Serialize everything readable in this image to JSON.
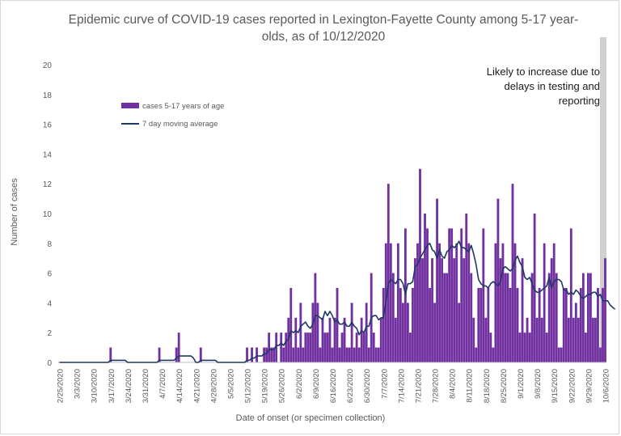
{
  "chart_data": {
    "type": "bar",
    "title_line1": "Epidemic curve of COVID-19 cases reported in Lexington-Fayette County among 5-17 year-",
    "title_line2": "olds, as of 10/12/2020",
    "xlabel": "Date of onset (or specimen collection)",
    "ylabel": "Number of cases",
    "ylim": [
      0,
      20
    ],
    "y_ticks": [
      "0",
      "2",
      "4",
      "6",
      "8",
      "10",
      "12",
      "14",
      "16",
      "18",
      "20"
    ],
    "x_tick_labels": [
      "2/25/2020",
      "3/3/2020",
      "3/10/2020",
      "3/17/2020",
      "3/24/2020",
      "3/31/2020",
      "4/7/2020",
      "4/14/2020",
      "4/21/2020",
      "4/28/2020",
      "5/5/2020",
      "5/12/2020",
      "5/19/2020",
      "5/26/2020",
      "6/2/2020",
      "6/9/2020",
      "6/16/2020",
      "6/23/2020",
      "6/30/2020",
      "7/7/2020",
      "7/14/2020",
      "7/21/2020",
      "7/28/2020",
      "8/4/2020",
      "8/11/2020",
      "8/18/2020",
      "8/25/2020",
      "9/1/2020",
      "9/8/2020",
      "9/15/2020",
      "9/22/2020",
      "9/29/2020",
      "10/6/2020"
    ],
    "start_date": "2/25/2020",
    "series": [
      {
        "name": "cases 5-17 years of age",
        "color": "#7030a0",
        "values": [
          0,
          0,
          0,
          0,
          0,
          0,
          0,
          0,
          0,
          0,
          0,
          0,
          0,
          0,
          0,
          0,
          0,
          0,
          0,
          0,
          0,
          1,
          0,
          0,
          0,
          0,
          0,
          0,
          0,
          0,
          0,
          0,
          0,
          0,
          0,
          0,
          0,
          0,
          0,
          0,
          0,
          1,
          0,
          0,
          0,
          0,
          0,
          0,
          1,
          2,
          0,
          0,
          0,
          0,
          0,
          0,
          0,
          0,
          1,
          0,
          0,
          0,
          0,
          0,
          0,
          0,
          0,
          0,
          0,
          0,
          0,
          0,
          0,
          0,
          0,
          0,
          0,
          1,
          0,
          1,
          0,
          1,
          0,
          0,
          1,
          1,
          2,
          1,
          1,
          2,
          0,
          2,
          1,
          2,
          3,
          5,
          1,
          3,
          1,
          4,
          1,
          2,
          2,
          2,
          4,
          6,
          4,
          1,
          3,
          2,
          2,
          3,
          1,
          3,
          5,
          1,
          2,
          3,
          1,
          1,
          4,
          1,
          2,
          1,
          3,
          2,
          4,
          1,
          6,
          2,
          1,
          1,
          3,
          5,
          8,
          12,
          8,
          6,
          3,
          8,
          5,
          4,
          9,
          4,
          2,
          5,
          7,
          8,
          13,
          7,
          10,
          9,
          5,
          7,
          4,
          11,
          8,
          7,
          6,
          6,
          9,
          9,
          7,
          8,
          4,
          9,
          7,
          10,
          8,
          6,
          3,
          1,
          5,
          5,
          9,
          3,
          5,
          2,
          1,
          8,
          11,
          7,
          8,
          6,
          6,
          5,
          12,
          8,
          5,
          2,
          7,
          2,
          3,
          2,
          6,
          10,
          3,
          5,
          3,
          8,
          2,
          6,
          7,
          8,
          6,
          1,
          1,
          5,
          5,
          3,
          9,
          3,
          4,
          3,
          5,
          6,
          2,
          6,
          6,
          3,
          3,
          5,
          1,
          5,
          7
        ],
        "values_note_skip": null
      },
      {
        "name": "7 day moving average",
        "color": "#1f3864",
        "values": [
          0,
          0,
          0,
          0,
          0,
          0,
          0,
          0,
          0,
          0,
          0,
          0,
          0,
          0,
          0,
          0,
          0,
          0,
          0,
          0,
          0,
          0.14,
          0.14,
          0.14,
          0.14,
          0.14,
          0.14,
          0.14,
          0,
          0,
          0,
          0,
          0,
          0,
          0,
          0,
          0,
          0,
          0,
          0,
          0,
          0.14,
          0.14,
          0.14,
          0.14,
          0.14,
          0.14,
          0.14,
          0.29,
          0.43,
          0.43,
          0.43,
          0.43,
          0.43,
          0.43,
          0.29,
          0,
          0,
          0.14,
          0.14,
          0.14,
          0.14,
          0.14,
          0.14,
          0.14,
          0,
          0,
          0,
          0,
          0,
          0,
          0,
          0,
          0,
          0,
          0,
          0,
          0.14,
          0.14,
          0.29,
          0.29,
          0.43,
          0.43,
          0.43,
          0.57,
          0.57,
          0.86,
          0.86,
          0.86,
          1.14,
          1.14,
          1.29,
          1.14,
          1.43,
          1.57,
          2.14,
          2,
          2.14,
          2,
          2.43,
          2.57,
          2.71,
          2.43,
          2.29,
          2.57,
          3.14,
          3.14,
          3,
          2.86,
          3.43,
          3.14,
          3.43,
          3.14,
          2.71,
          2.86,
          2.57,
          2.57,
          2.71,
          2.43,
          2.43,
          2.71,
          2.43,
          2.29,
          1.86,
          2.14,
          2,
          2.43,
          2.43,
          3,
          3.14,
          3.14,
          2.86,
          3,
          3,
          4,
          5.29,
          5.57,
          5.43,
          5.29,
          5.57,
          5.57,
          5.29,
          4.57,
          5.29,
          5.29,
          5.43,
          6.43,
          6.57,
          7,
          7.29,
          7.57,
          7.86,
          8,
          7.57,
          7.43,
          7,
          7.57,
          7.14,
          7,
          7.43,
          7.57,
          7.86,
          7.71,
          7.86,
          8.14,
          7.71,
          7.71,
          7.57,
          7.43,
          7.86,
          7.29,
          6.57,
          5.57,
          5.29,
          5.14,
          5.14,
          5,
          5.29,
          5.43,
          5.29,
          5.14,
          5.43,
          6.29,
          6.43,
          6.29,
          6.14,
          6.29,
          6.86,
          7.14,
          6.71,
          6.43,
          5.71,
          5.57,
          5.71,
          5.29,
          4.86,
          4.71,
          4.71,
          4.86,
          5,
          5.14,
          5.71,
          5,
          5.43,
          5.57,
          5.57,
          5.43,
          4.86,
          4.86,
          4.57,
          4.71,
          4.57,
          4.86,
          4.71,
          4.43,
          4.29,
          4.43,
          4.57,
          4.57,
          4.71,
          4.71,
          4.43,
          4.57,
          4.14,
          4.14,
          4.14,
          3.86,
          3.71,
          3.57
        ]
      }
    ],
    "legend": {
      "placement": "upper-left"
    },
    "annotation": {
      "lines": [
        "Likely to increase due to",
        "delays in testing and",
        "reporting"
      ],
      "shaded_days": 2,
      "shade_color": "#d0d0d0"
    },
    "grid": false
  }
}
